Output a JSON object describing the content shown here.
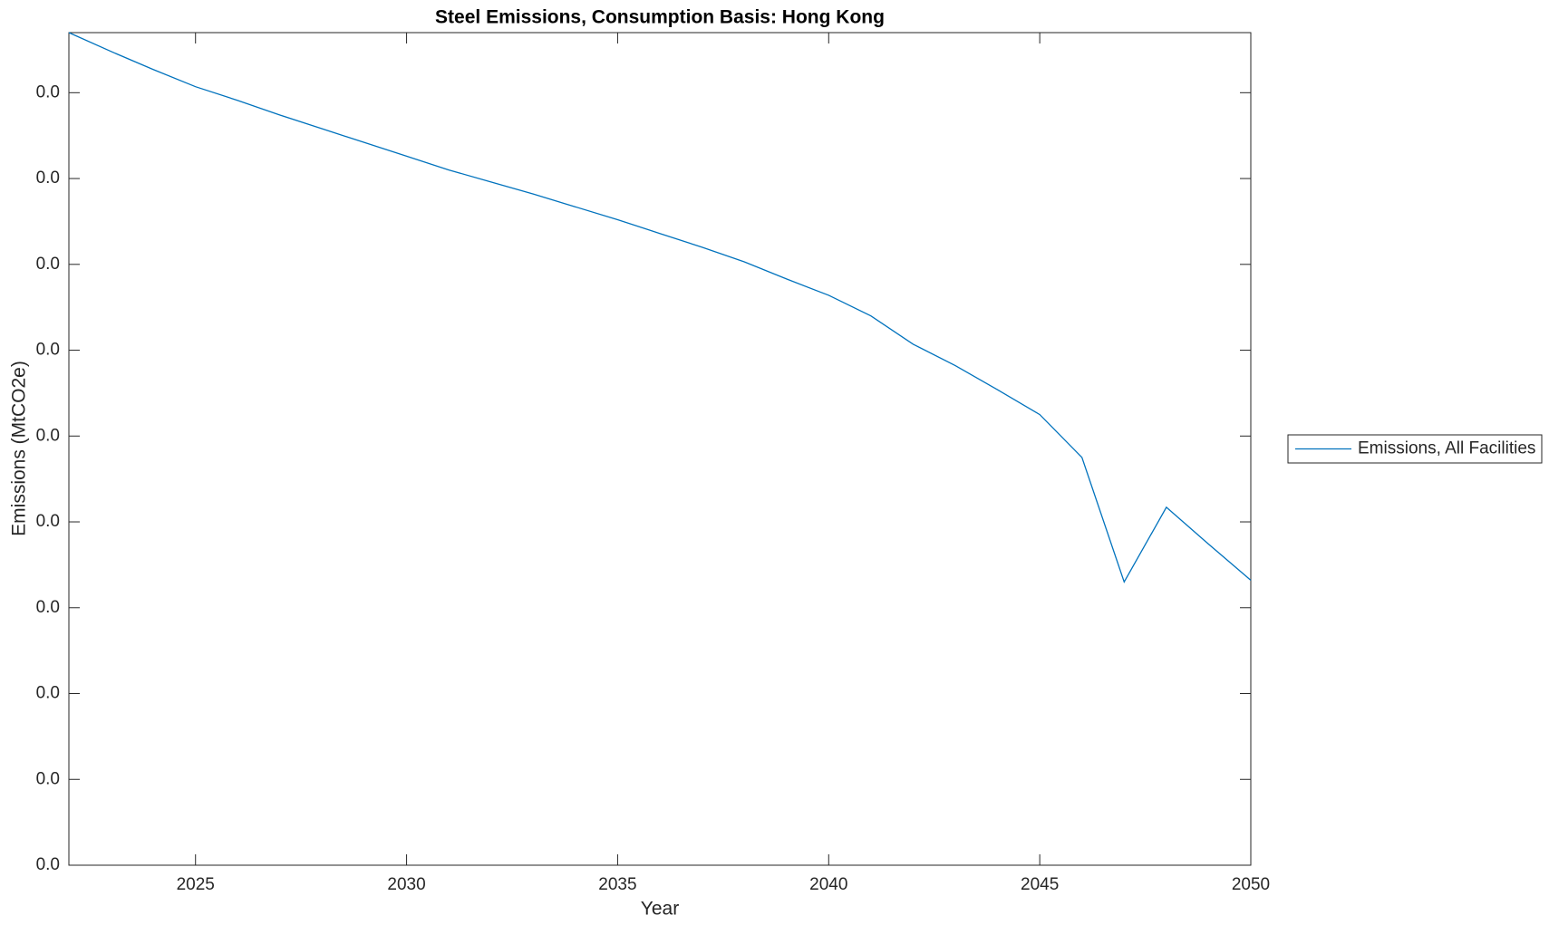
{
  "chart_data": {
    "type": "line",
    "title": "Steel Emissions, Consumption Basis: Hong Kong",
    "x_label": "Year",
    "y_label": "Emissions (MtCO2e)",
    "x": [
      2022,
      2023,
      2024,
      2025,
      2026,
      2027,
      2028,
      2029,
      2030,
      2031,
      2032,
      2033,
      2034,
      2035,
      2036,
      2037,
      2038,
      2039,
      2040,
      2041,
      2042,
      2043,
      2044,
      2045,
      2046,
      2047,
      2048,
      2049,
      2050
    ],
    "series": [
      {
        "name": "Emissions, All Facilities",
        "color": "#0072bd",
        "values": [
          0.0097,
          0.00948,
          0.00927,
          0.00907,
          0.00891,
          0.00874,
          0.00858,
          0.00842,
          0.00826,
          0.0081,
          0.00796,
          0.00782,
          0.00767,
          0.00752,
          0.00736,
          0.0072,
          0.00703,
          0.00683,
          0.00664,
          0.0064,
          0.00607,
          0.00582,
          0.00554,
          0.00525,
          0.00475,
          0.0033,
          0.00417,
          0.00374,
          0.00332
        ]
      }
    ],
    "xlim": [
      2022,
      2050
    ],
    "xticks": [
      2025,
      2030,
      2035,
      2040,
      2045,
      2050
    ],
    "ylim": [
      0,
      0.0097
    ],
    "yticks": [
      {
        "value": 0,
        "label": "0.0"
      },
      {
        "value": 0.001,
        "label": "0.0"
      },
      {
        "value": 0.002,
        "label": "0.0"
      },
      {
        "value": 0.003,
        "label": "0.0"
      },
      {
        "value": 0.004,
        "label": "0.0"
      },
      {
        "value": 0.005,
        "label": "0.0"
      },
      {
        "value": 0.006,
        "label": "0.0"
      },
      {
        "value": 0.007,
        "label": "0.0"
      },
      {
        "value": 0.008,
        "label": "0.0"
      },
      {
        "value": 0.009,
        "label": "0.0"
      }
    ],
    "grid": false,
    "legend": "outside-right"
  }
}
